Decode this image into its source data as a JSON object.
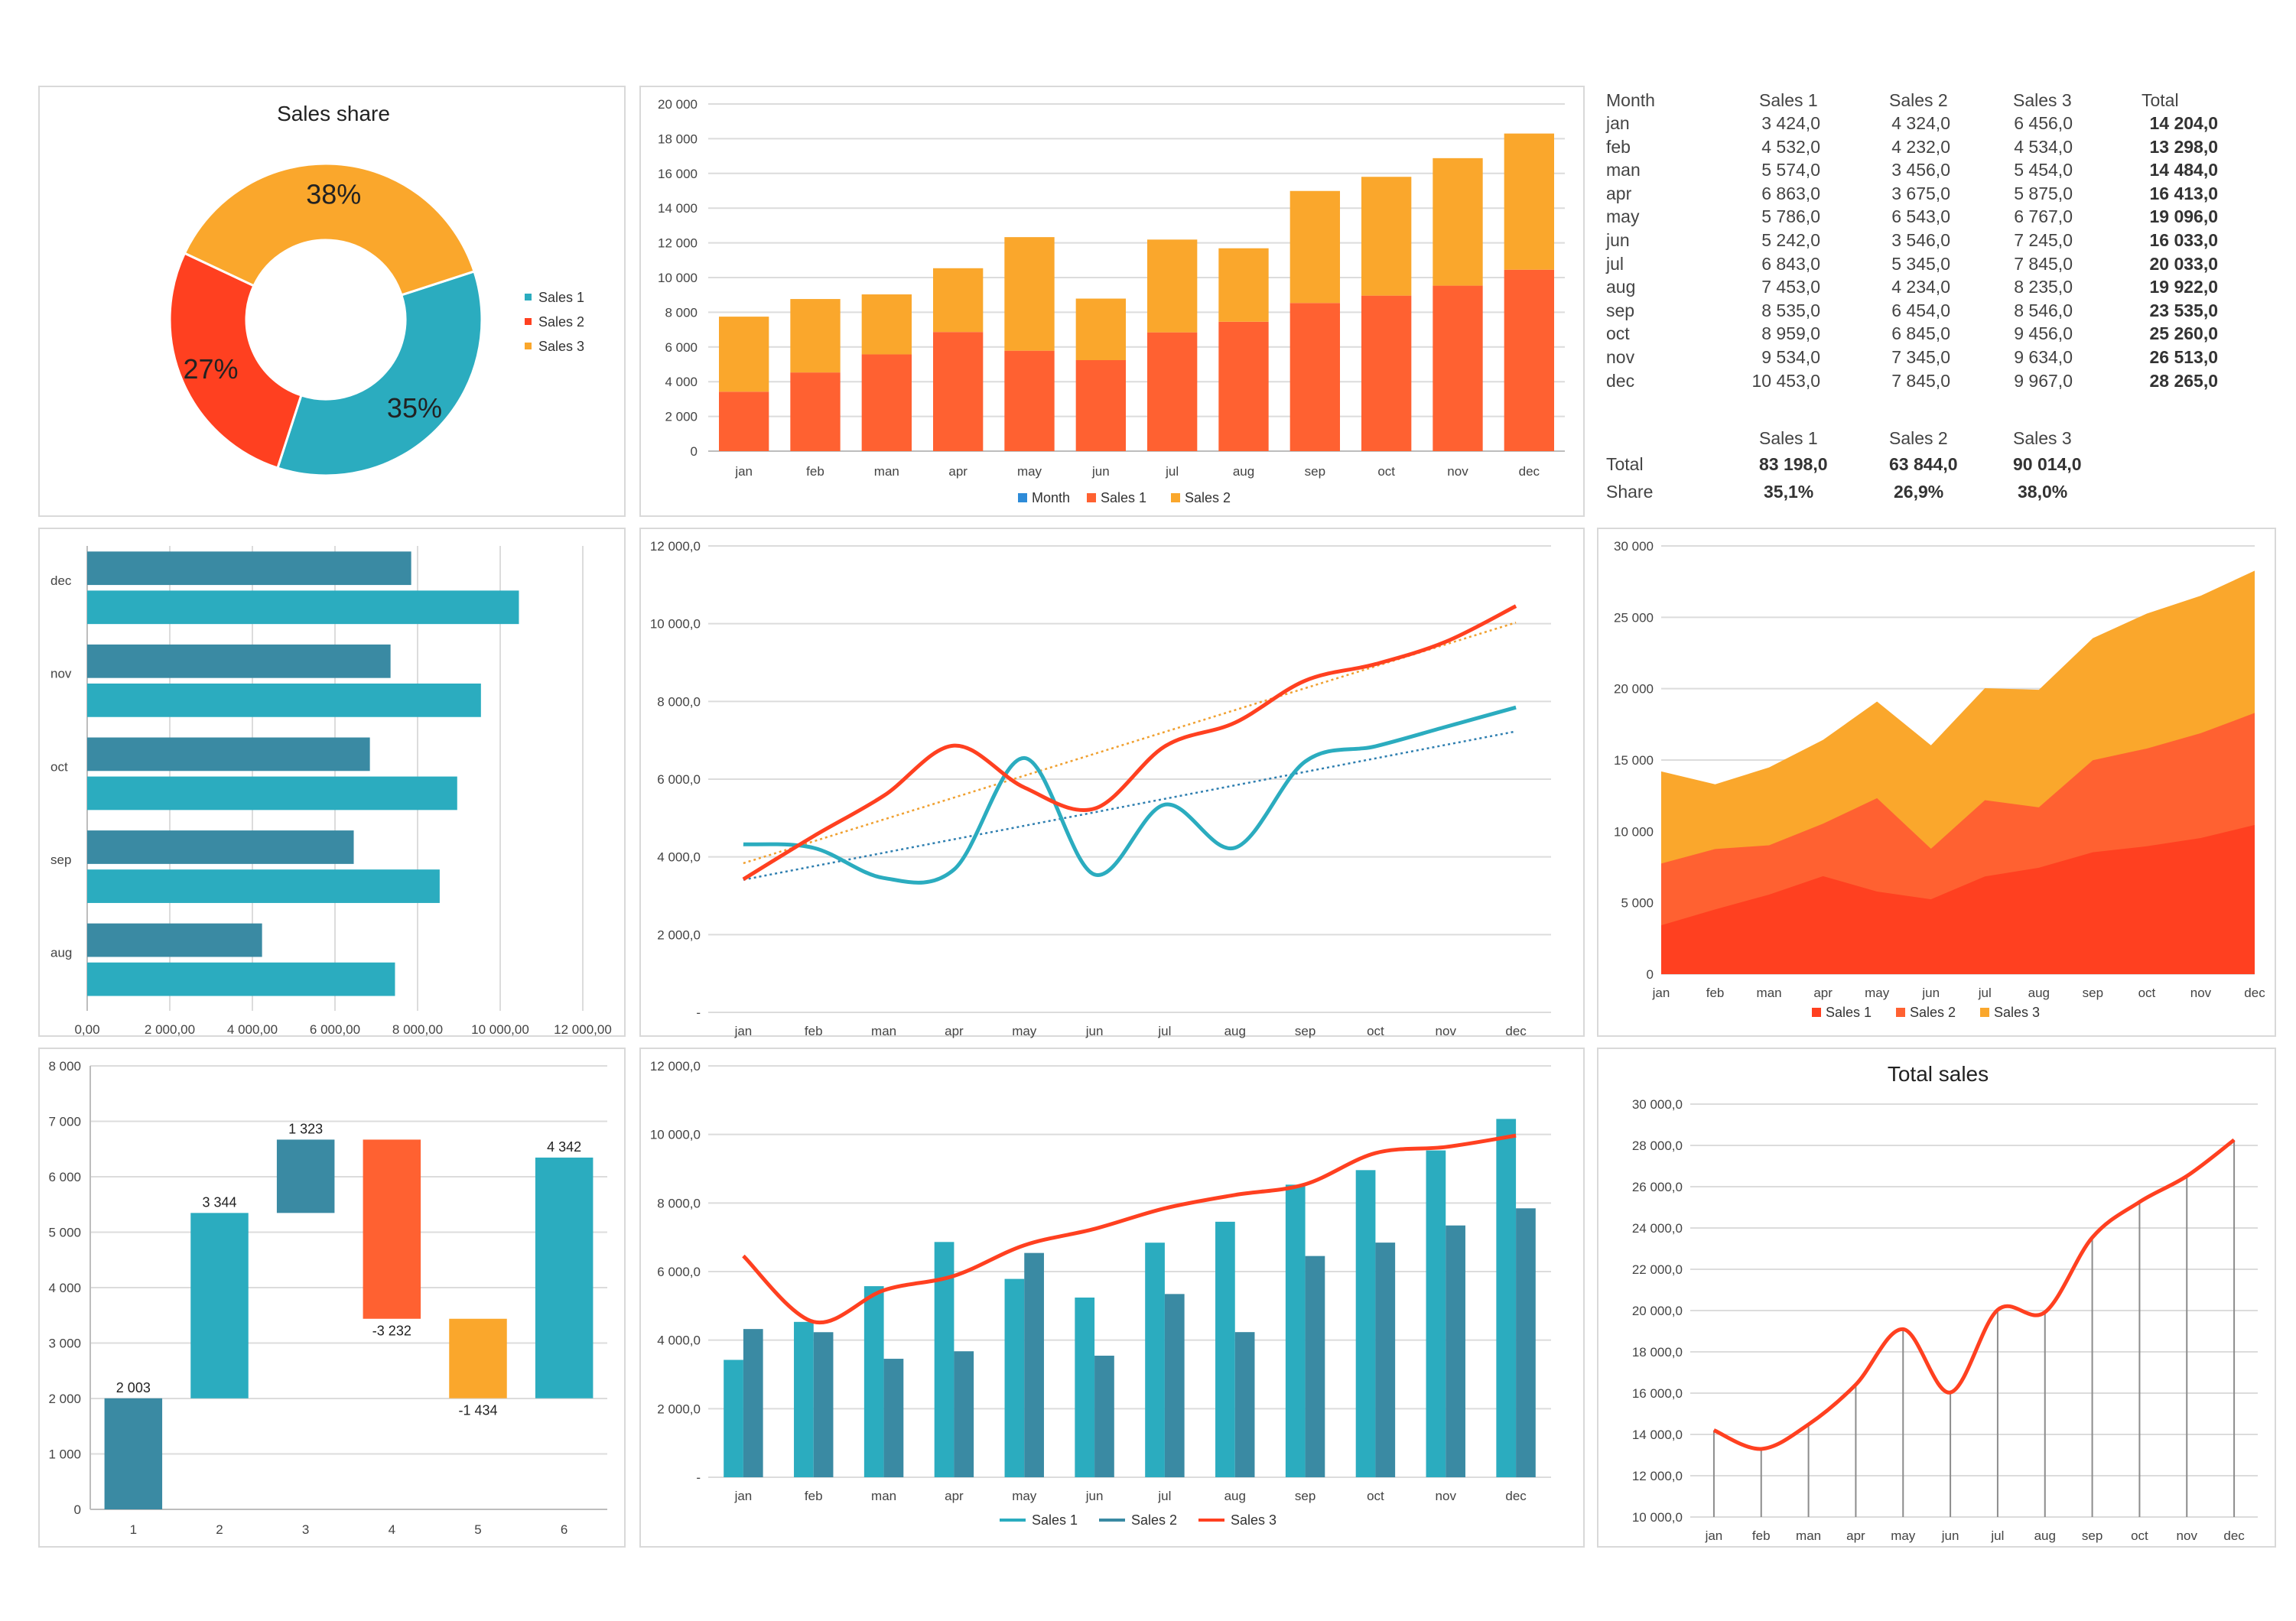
{
  "colors": {
    "teal": "#2BACBF",
    "steel": "#3A8AA3",
    "orange": "#FF6131",
    "red": "#FF4020",
    "amber": "#FAA72C",
    "blue": "#2E8BD8"
  },
  "chart_data": [
    {
      "id": "donut",
      "type": "pie",
      "title": "Sales share",
      "categories": [
        "Sales 1",
        "Sales 2",
        "Sales 3"
      ],
      "values": [
        35,
        27,
        38
      ],
      "labels": [
        "35%",
        "27%",
        "38%"
      ],
      "legend": "right"
    },
    {
      "id": "stacked-bar",
      "type": "bar",
      "stacked": true,
      "title": "",
      "categories": [
        "jan",
        "feb",
        "man",
        "apr",
        "may",
        "jun",
        "jul",
        "aug",
        "sep",
        "oct",
        "nov",
        "dec"
      ],
      "series": [
        {
          "name": "Month",
          "values": [
            0,
            0,
            0,
            0,
            0,
            0,
            0,
            0,
            0,
            0,
            0,
            0
          ]
        },
        {
          "name": "Sales 1",
          "values": [
            3424,
            4532,
            5574,
            6863,
            5786,
            5242,
            6843,
            7453,
            8535,
            8959,
            9534,
            10453
          ]
        },
        {
          "name": "Sales 2",
          "values": [
            4324,
            4232,
            3456,
            3675,
            6543,
            3546,
            5345,
            4234,
            6454,
            6845,
            7345,
            7845
          ]
        }
      ],
      "ylim": [
        0,
        20000
      ],
      "yticks": [
        "0",
        "2 000",
        "4 000",
        "6 000",
        "8 000",
        "10 000",
        "12 000",
        "14 000",
        "16 000",
        "18 000",
        "20 000"
      ],
      "legend": "bottom"
    },
    {
      "id": "hbar",
      "type": "bar",
      "orientation": "horizontal",
      "title": "",
      "categories": [
        "aug",
        "sep",
        "oct",
        "nov",
        "dec"
      ],
      "series": [
        {
          "values": [
            4234,
            6454,
            6845,
            7345,
            7845
          ]
        },
        {
          "values": [
            7453,
            8535,
            8959,
            9534,
            10453
          ]
        }
      ],
      "xlim": [
        0,
        12000
      ],
      "xticks": [
        "0,00",
        "2 000,00",
        "4 000,00",
        "6 000,00",
        "8 000,00",
        "10 000,00",
        "12 000,00"
      ]
    },
    {
      "id": "trend-lines",
      "type": "line",
      "title": "",
      "categories": [
        "jan",
        "feb",
        "man",
        "apr",
        "may",
        "jun",
        "jul",
        "aug",
        "sep",
        "oct",
        "nov",
        "dec"
      ],
      "series": [
        {
          "values": [
            4324,
            4232,
            3456,
            3675,
            6543,
            3546,
            5345,
            4234,
            6454,
            6845,
            7345,
            7845
          ]
        },
        {
          "values": [
            3424,
            4532,
            5574,
            6863,
            5786,
            5242,
            6843,
            7453,
            8535,
            8959,
            9534,
            10453
          ]
        }
      ],
      "trendlines": true,
      "ylim": [
        0,
        12000
      ],
      "yticks": [
        "-",
        "2 000,0",
        "4 000,0",
        "6 000,0",
        "8 000,0",
        "10 000,0",
        "12 000,0"
      ]
    },
    {
      "id": "stacked-area",
      "type": "area",
      "stacked": true,
      "title": "",
      "categories": [
        "jan",
        "feb",
        "man",
        "apr",
        "may",
        "jun",
        "jul",
        "aug",
        "sep",
        "oct",
        "nov",
        "dec"
      ],
      "series": [
        {
          "name": "Sales 1",
          "values": [
            3424,
            4532,
            5574,
            6863,
            5786,
            5242,
            6843,
            7453,
            8535,
            8959,
            9534,
            10453
          ]
        },
        {
          "name": "Sales 2",
          "values": [
            4324,
            4232,
            3456,
            3675,
            6543,
            3546,
            5345,
            4234,
            6454,
            6845,
            7345,
            7845
          ]
        },
        {
          "name": "Sales 3",
          "values": [
            6456,
            4534,
            5454,
            5875,
            6767,
            7245,
            7845,
            8235,
            8546,
            9456,
            9634,
            9967
          ]
        }
      ],
      "ylim": [
        0,
        30000
      ],
      "yticks": [
        "0",
        "5 000",
        "10 000",
        "15 000",
        "20 000",
        "25 000",
        "30 000"
      ],
      "legend": "bottom"
    },
    {
      "id": "waterfall",
      "type": "bar",
      "subtype": "waterfall",
      "title": "",
      "categories": [
        "1",
        "2",
        "3",
        "4",
        "5",
        "6"
      ],
      "bars": [
        {
          "start": 0,
          "end": 2003,
          "label": "2 003"
        },
        {
          "start": 2003,
          "end": 5347,
          "label": "3 344"
        },
        {
          "start": 5347,
          "end": 6670,
          "label": "1 323"
        },
        {
          "start": 6670,
          "end": 3438,
          "label": "-3 232"
        },
        {
          "start": 3438,
          "end": 2004,
          "label": "-1 434"
        },
        {
          "start": 2004,
          "end": 6346,
          "label": "4 342"
        }
      ],
      "ylim": [
        0,
        8000
      ],
      "yticks": [
        "0",
        "1 000",
        "2 000",
        "3 000",
        "4 000",
        "5 000",
        "6 000",
        "7 000",
        "8 000"
      ]
    },
    {
      "id": "combo",
      "type": "bar",
      "subtype": "bar-line",
      "title": "",
      "categories": [
        "jan",
        "feb",
        "man",
        "apr",
        "may",
        "jun",
        "jul",
        "aug",
        "sep",
        "oct",
        "nov",
        "dec"
      ],
      "series": [
        {
          "name": "Sales 1",
          "type": "bar",
          "values": [
            3424,
            4532,
            5574,
            6863,
            5786,
            5242,
            6843,
            7453,
            8535,
            8959,
            9534,
            10453
          ]
        },
        {
          "name": "Sales 2",
          "type": "bar",
          "values": [
            4324,
            4232,
            3456,
            3675,
            6543,
            3546,
            5345,
            4234,
            6454,
            6845,
            7345,
            7845
          ]
        },
        {
          "name": "Sales 3",
          "type": "line",
          "values": [
            6456,
            4534,
            5454,
            5875,
            6767,
            7245,
            7845,
            8235,
            8546,
            9456,
            9634,
            9967
          ]
        }
      ],
      "ylim": [
        0,
        12000
      ],
      "yticks": [
        "-",
        "2 000,0",
        "4 000,0",
        "6 000,0",
        "8 000,0",
        "10 000,0",
        "12 000,0"
      ],
      "legend": "bottom"
    },
    {
      "id": "total-sales",
      "type": "line",
      "title": "Total sales",
      "categories": [
        "jan",
        "feb",
        "man",
        "apr",
        "may",
        "jun",
        "jul",
        "aug",
        "sep",
        "oct",
        "nov",
        "dec"
      ],
      "values": [
        14204,
        13298,
        14484,
        16413,
        19096,
        16033,
        20033,
        19922,
        23535,
        25260,
        26513,
        28265
      ],
      "droplines": true,
      "ylim": [
        10000,
        30000
      ],
      "yticks": [
        "10 000,0",
        "12 000,0",
        "14 000,0",
        "16 000,0",
        "18 000,0",
        "20 000,0",
        "22 000,0",
        "24 000,0",
        "26 000,0",
        "28 000,0",
        "30 000,0"
      ]
    }
  ],
  "table": {
    "headers": [
      "Month",
      "Sales 1",
      "Sales 2",
      "Sales 3",
      "Total"
    ],
    "rows": [
      [
        "jan",
        "3 424,0",
        "4 324,0",
        "6 456,0",
        "14 204,0"
      ],
      [
        "feb",
        "4 532,0",
        "4 232,0",
        "4 534,0",
        "13 298,0"
      ],
      [
        "man",
        "5 574,0",
        "3 456,0",
        "5 454,0",
        "14 484,0"
      ],
      [
        "apr",
        "6 863,0",
        "3 675,0",
        "5 875,0",
        "16 413,0"
      ],
      [
        "may",
        "5 786,0",
        "6 543,0",
        "6 767,0",
        "19 096,0"
      ],
      [
        "jun",
        "5 242,0",
        "3 546,0",
        "7 245,0",
        "16 033,0"
      ],
      [
        "jul",
        "6 843,0",
        "5 345,0",
        "7 845,0",
        "20 033,0"
      ],
      [
        "aug",
        "7 453,0",
        "4 234,0",
        "8 235,0",
        "19 922,0"
      ],
      [
        "sep",
        "8 535,0",
        "6 454,0",
        "8 546,0",
        "23 535,0"
      ],
      [
        "oct",
        "8 959,0",
        "6 845,0",
        "9 456,0",
        "25 260,0"
      ],
      [
        "nov",
        "9 534,0",
        "7 345,0",
        "9 634,0",
        "26 513,0"
      ],
      [
        "dec",
        "10 453,0",
        "7 845,0",
        "9 967,0",
        "28 265,0"
      ]
    ],
    "summary_headers": [
      "Sales 1",
      "Sales 2",
      "Sales 3"
    ],
    "total_label": "Total",
    "totals": [
      "83 198,0",
      "63 844,0",
      "90 014,0"
    ],
    "share_label": "Share",
    "shares": [
      "35,1%",
      "26,9%",
      "38,0%"
    ]
  }
}
